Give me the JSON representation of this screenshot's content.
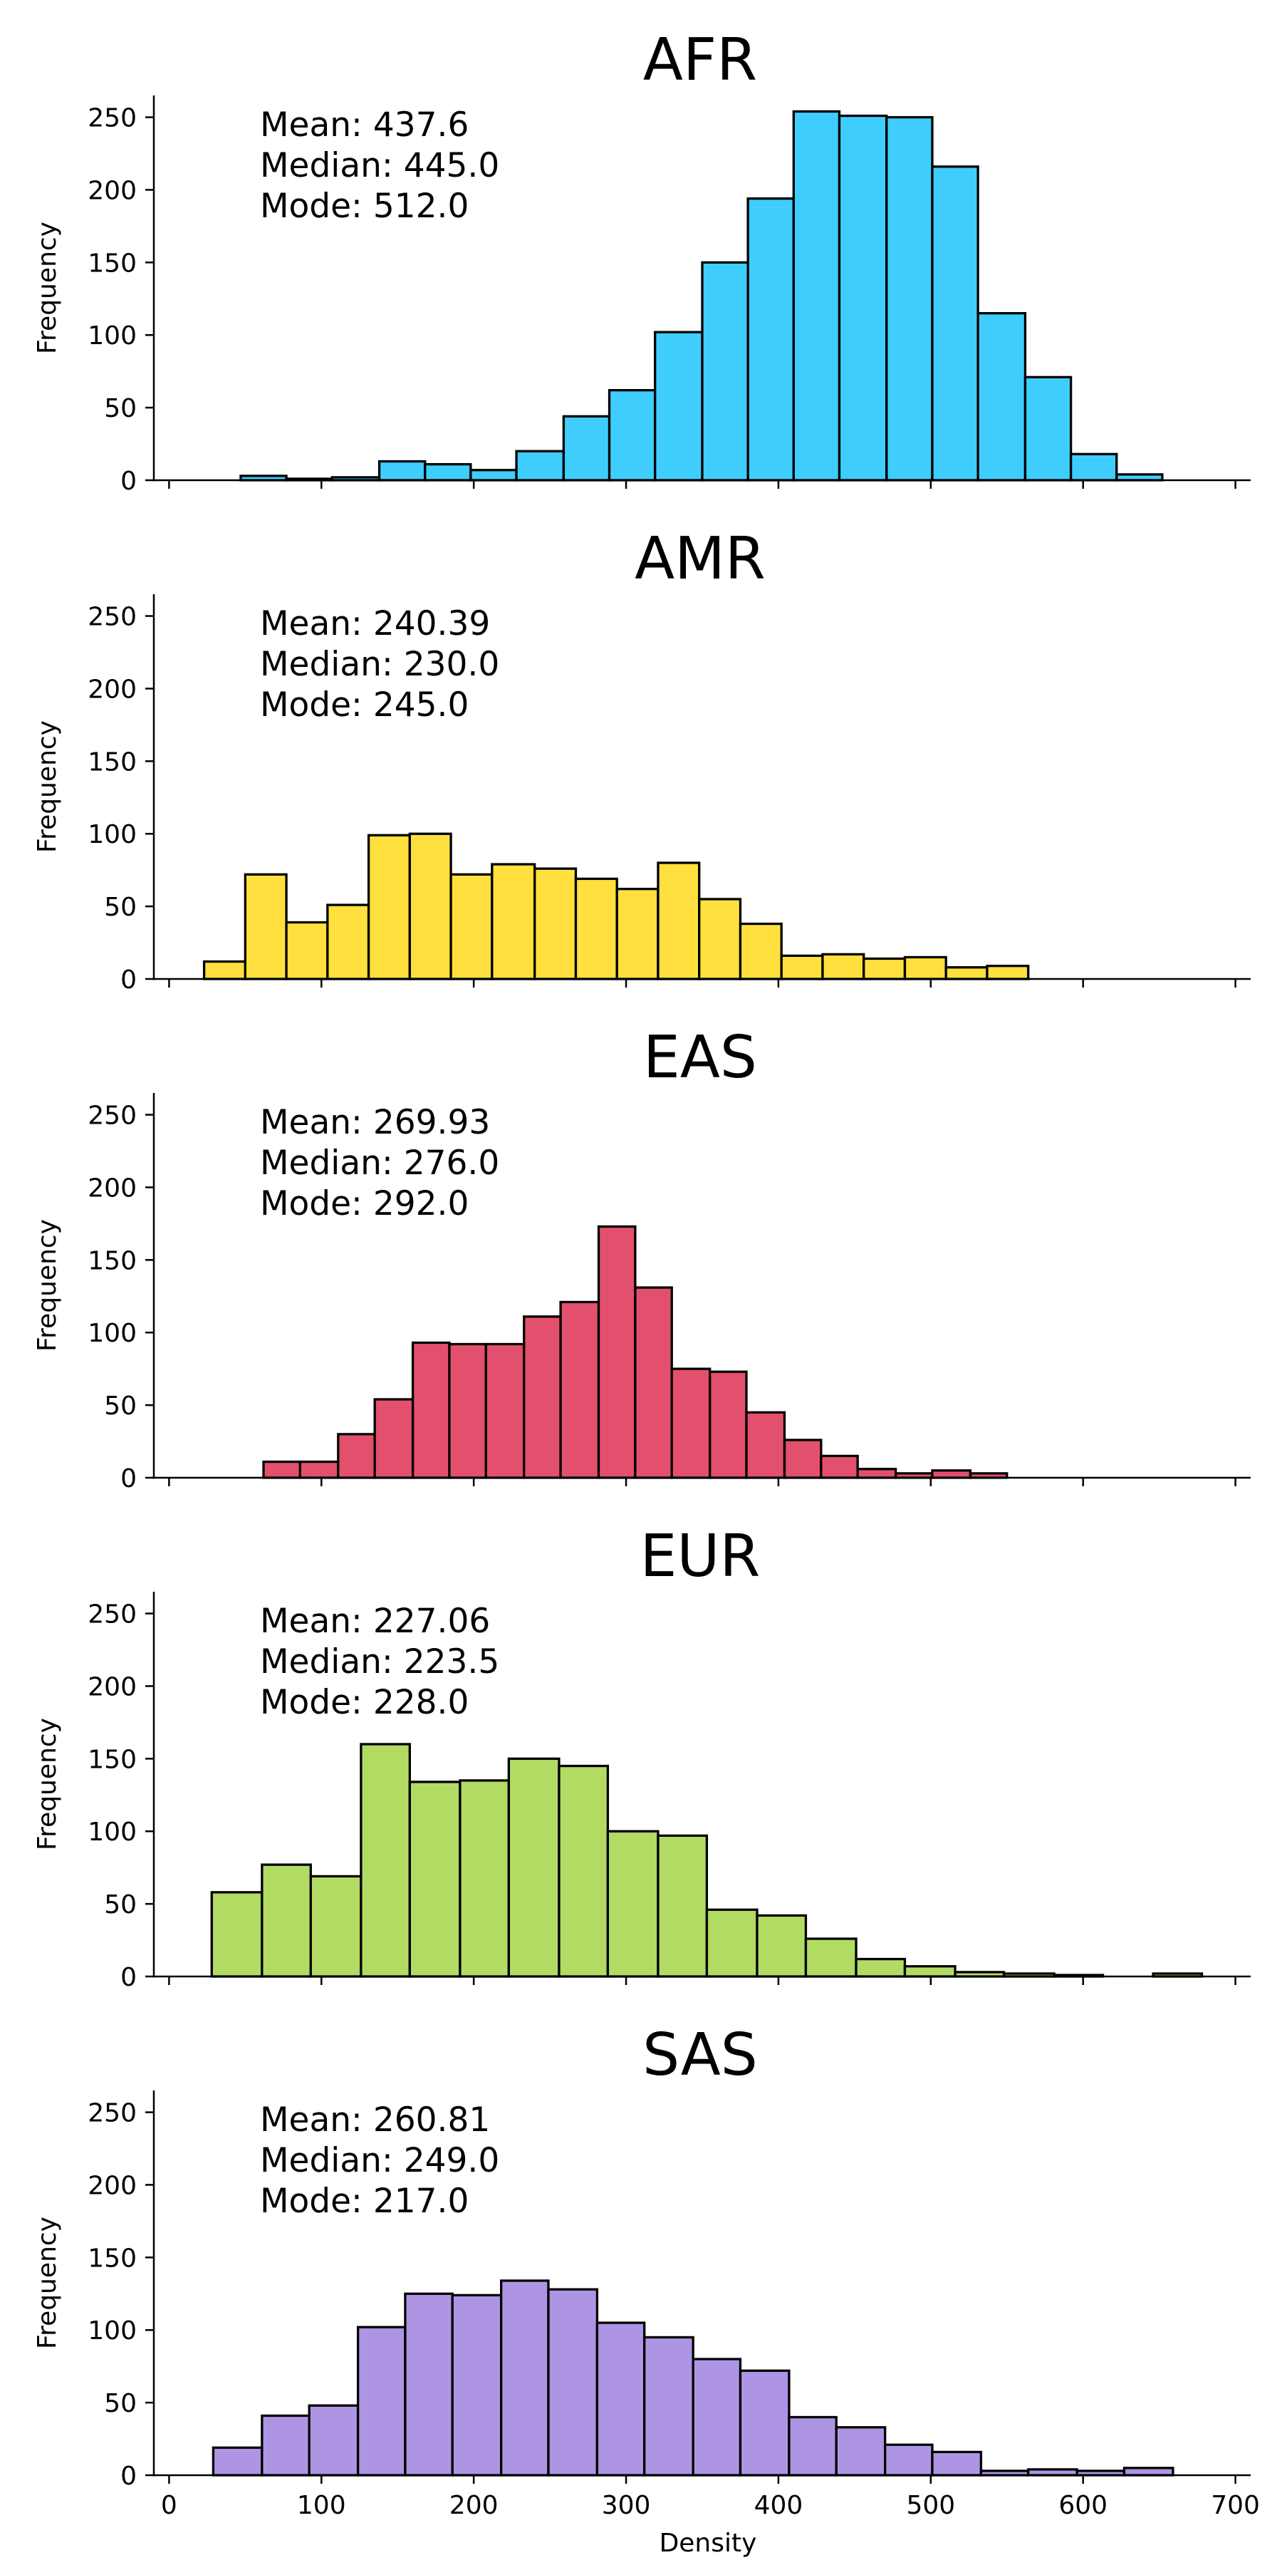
{
  "chart_data": [
    {
      "type": "bar",
      "title": "AFR",
      "ylabel": "Frequency",
      "xlabel": "",
      "color": "#3fcdfd",
      "xlim": [
        -10,
        710
      ],
      "ylim": [
        0,
        265
      ],
      "yticks": [
        "0",
        "50",
        "100",
        "150",
        "200",
        "250"
      ],
      "xticks": [
        0,
        100,
        200,
        300,
        400,
        500,
        600,
        700
      ],
      "xtick_labels_visible": false,
      "annotation": [
        "Mean: 437.6",
        "Median: 445.0",
        "Mode: 512.0"
      ],
      "bins": [
        {
          "x0": 47,
          "x1": 77,
          "value": 3
        },
        {
          "x0": 77,
          "x1": 107,
          "value": 1
        },
        {
          "x0": 107,
          "x1": 138,
          "value": 2
        },
        {
          "x0": 138,
          "x1": 168,
          "value": 13
        },
        {
          "x0": 168,
          "x1": 198,
          "value": 11
        },
        {
          "x0": 198,
          "x1": 228,
          "value": 7
        },
        {
          "x0": 228,
          "x1": 259,
          "value": 20
        },
        {
          "x0": 259,
          "x1": 289,
          "value": 44
        },
        {
          "x0": 289,
          "x1": 319,
          "value": 62
        },
        {
          "x0": 319,
          "x1": 350,
          "value": 102
        },
        {
          "x0": 350,
          "x1": 380,
          "value": 150
        },
        {
          "x0": 380,
          "x1": 410,
          "value": 194
        },
        {
          "x0": 410,
          "x1": 440,
          "value": 254
        },
        {
          "x0": 440,
          "x1": 471,
          "value": 251
        },
        {
          "x0": 471,
          "x1": 501,
          "value": 250
        },
        {
          "x0": 501,
          "x1": 531,
          "value": 216
        },
        {
          "x0": 531,
          "x1": 562,
          "value": 115
        },
        {
          "x0": 562,
          "x1": 592,
          "value": 71
        },
        {
          "x0": 592,
          "x1": 622,
          "value": 18
        },
        {
          "x0": 622,
          "x1": 652,
          "value": 4
        }
      ]
    },
    {
      "type": "bar",
      "title": "AMR",
      "ylabel": "Frequency",
      "xlabel": "",
      "color": "#ffe03e",
      "xlim": [
        -10,
        710
      ],
      "ylim": [
        0,
        265
      ],
      "yticks": [
        "0",
        "50",
        "100",
        "150",
        "200",
        "250"
      ],
      "xticks": [
        0,
        100,
        200,
        300,
        400,
        500,
        600,
        700
      ],
      "xtick_labels_visible": false,
      "annotation": [
        "Mean: 240.39",
        "Median: 230.0",
        "Mode: 245.0"
      ],
      "bins": [
        {
          "x0": 23,
          "x1": 50,
          "value": 12
        },
        {
          "x0": 50,
          "x1": 77,
          "value": 72
        },
        {
          "x0": 77,
          "x1": 104,
          "value": 39
        },
        {
          "x0": 104,
          "x1": 131,
          "value": 51
        },
        {
          "x0": 131,
          "x1": 158,
          "value": 99
        },
        {
          "x0": 158,
          "x1": 185,
          "value": 100
        },
        {
          "x0": 185,
          "x1": 212,
          "value": 72
        },
        {
          "x0": 212,
          "x1": 240,
          "value": 79
        },
        {
          "x0": 240,
          "x1": 267,
          "value": 76
        },
        {
          "x0": 267,
          "x1": 294,
          "value": 69
        },
        {
          "x0": 294,
          "x1": 321,
          "value": 62
        },
        {
          "x0": 321,
          "x1": 348,
          "value": 80
        },
        {
          "x0": 348,
          "x1": 375,
          "value": 55
        },
        {
          "x0": 375,
          "x1": 402,
          "value": 38
        },
        {
          "x0": 402,
          "x1": 429,
          "value": 16
        },
        {
          "x0": 429,
          "x1": 456,
          "value": 17
        },
        {
          "x0": 456,
          "x1": 483,
          "value": 14
        },
        {
          "x0": 483,
          "x1": 510,
          "value": 15
        },
        {
          "x0": 510,
          "x1": 537,
          "value": 8
        },
        {
          "x0": 537,
          "x1": 564,
          "value": 9
        }
      ]
    },
    {
      "type": "bar",
      "title": "EAS",
      "ylabel": "Frequency",
      "xlabel": "",
      "color": "#e3506d",
      "xlim": [
        -10,
        710
      ],
      "ylim": [
        0,
        265
      ],
      "yticks": [
        "0",
        "50",
        "100",
        "150",
        "200",
        "250"
      ],
      "xticks": [
        0,
        100,
        200,
        300,
        400,
        500,
        600,
        700
      ],
      "xtick_labels_visible": false,
      "annotation": [
        "Mean: 269.93",
        "Median: 276.0",
        "Mode: 292.0"
      ],
      "bins": [
        {
          "x0": 62,
          "x1": 86,
          "value": 11
        },
        {
          "x0": 86,
          "x1": 111,
          "value": 11
        },
        {
          "x0": 111,
          "x1": 135,
          "value": 30
        },
        {
          "x0": 135,
          "x1": 160,
          "value": 54
        },
        {
          "x0": 160,
          "x1": 184,
          "value": 93
        },
        {
          "x0": 184,
          "x1": 208,
          "value": 92
        },
        {
          "x0": 208,
          "x1": 233,
          "value": 92
        },
        {
          "x0": 233,
          "x1": 257,
          "value": 111
        },
        {
          "x0": 257,
          "x1": 282,
          "value": 121
        },
        {
          "x0": 282,
          "x1": 306,
          "value": 173
        },
        {
          "x0": 306,
          "x1": 330,
          "value": 131
        },
        {
          "x0": 330,
          "x1": 355,
          "value": 75
        },
        {
          "x0": 355,
          "x1": 379,
          "value": 73
        },
        {
          "x0": 379,
          "x1": 404,
          "value": 45
        },
        {
          "x0": 404,
          "x1": 428,
          "value": 26
        },
        {
          "x0": 428,
          "x1": 452,
          "value": 15
        },
        {
          "x0": 452,
          "x1": 477,
          "value": 6
        },
        {
          "x0": 477,
          "x1": 501,
          "value": 3
        },
        {
          "x0": 501,
          "x1": 526,
          "value": 5
        },
        {
          "x0": 526,
          "x1": 550,
          "value": 3
        }
      ]
    },
    {
      "type": "bar",
      "title": "EUR",
      "ylabel": "Frequency",
      "xlabel": "",
      "color": "#b2db64",
      "xlim": [
        -10,
        710
      ],
      "ylim": [
        0,
        265
      ],
      "yticks": [
        "0",
        "50",
        "100",
        "150",
        "200",
        "250"
      ],
      "xticks": [
        0,
        100,
        200,
        300,
        400,
        500,
        600,
        700
      ],
      "xtick_labels_visible": false,
      "annotation": [
        "Mean: 227.06",
        "Median: 223.5",
        "Mode: 228.0"
      ],
      "bins": [
        {
          "x0": 28,
          "x1": 61,
          "value": 58
        },
        {
          "x0": 61,
          "x1": 93,
          "value": 77
        },
        {
          "x0": 93,
          "x1": 126,
          "value": 69
        },
        {
          "x0": 126,
          "x1": 158,
          "value": 160
        },
        {
          "x0": 158,
          "x1": 191,
          "value": 134
        },
        {
          "x0": 191,
          "x1": 223,
          "value": 135
        },
        {
          "x0": 223,
          "x1": 256,
          "value": 150
        },
        {
          "x0": 256,
          "x1": 288,
          "value": 145
        },
        {
          "x0": 288,
          "x1": 321,
          "value": 100
        },
        {
          "x0": 321,
          "x1": 353,
          "value": 97
        },
        {
          "x0": 353,
          "x1": 386,
          "value": 46
        },
        {
          "x0": 386,
          "x1": 418,
          "value": 42
        },
        {
          "x0": 418,
          "x1": 451,
          "value": 26
        },
        {
          "x0": 451,
          "x1": 483,
          "value": 12
        },
        {
          "x0": 483,
          "x1": 516,
          "value": 7
        },
        {
          "x0": 516,
          "x1": 548,
          "value": 3
        },
        {
          "x0": 548,
          "x1": 581,
          "value": 2
        },
        {
          "x0": 581,
          "x1": 613,
          "value": 1
        },
        {
          "x0": 613,
          "x1": 646,
          "value": 0
        },
        {
          "x0": 646,
          "x1": 678,
          "value": 2
        }
      ]
    },
    {
      "type": "bar",
      "title": "SAS",
      "ylabel": "Frequency",
      "xlabel": "Density",
      "color": "#ad95e4",
      "xlim": [
        -10,
        710
      ],
      "ylim": [
        0,
        265
      ],
      "yticks": [
        "0",
        "50",
        "100",
        "150",
        "200",
        "250"
      ],
      "xticks": [
        0,
        100,
        200,
        300,
        400,
        500,
        600,
        700
      ],
      "xtick_labels_visible": true,
      "xtick_labels": [
        "0",
        "100",
        "200",
        "300",
        "400",
        "500",
        "600",
        "700"
      ],
      "annotation": [
        "Mean: 260.81",
        "Median: 249.0",
        "Mode: 217.0"
      ],
      "bins": [
        {
          "x0": 29,
          "x1": 61,
          "value": 19
        },
        {
          "x0": 61,
          "x1": 92,
          "value": 41
        },
        {
          "x0": 92,
          "x1": 124,
          "value": 48
        },
        {
          "x0": 124,
          "x1": 155,
          "value": 102
        },
        {
          "x0": 155,
          "x1": 186,
          "value": 125
        },
        {
          "x0": 186,
          "x1": 218,
          "value": 124
        },
        {
          "x0": 218,
          "x1": 249,
          "value": 134
        },
        {
          "x0": 249,
          "x1": 281,
          "value": 128
        },
        {
          "x0": 281,
          "x1": 312,
          "value": 105
        },
        {
          "x0": 312,
          "x1": 344,
          "value": 95
        },
        {
          "x0": 344,
          "x1": 375,
          "value": 80
        },
        {
          "x0": 375,
          "x1": 407,
          "value": 72
        },
        {
          "x0": 407,
          "x1": 438,
          "value": 40
        },
        {
          "x0": 438,
          "x1": 470,
          "value": 33
        },
        {
          "x0": 470,
          "x1": 501,
          "value": 21
        },
        {
          "x0": 501,
          "x1": 533,
          "value": 16
        },
        {
          "x0": 533,
          "x1": 564,
          "value": 3
        },
        {
          "x0": 564,
          "x1": 596,
          "value": 4
        },
        {
          "x0": 596,
          "x1": 627,
          "value": 3
        },
        {
          "x0": 627,
          "x1": 659,
          "value": 5
        }
      ]
    }
  ]
}
